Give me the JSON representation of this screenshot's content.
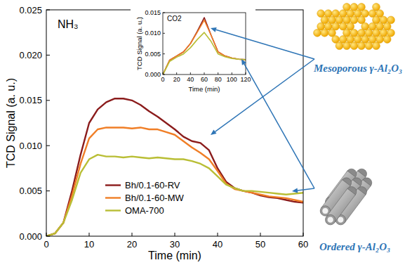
{
  "chart_data": [
    {
      "type": "line",
      "title": "NH₃",
      "x_label": "Time (min)",
      "y_label": "TCD Signal (a. u.)",
      "x": [
        0,
        2,
        4,
        6,
        8,
        10,
        12,
        14,
        16,
        18,
        20,
        22,
        24,
        26,
        28,
        30,
        32,
        34,
        36,
        38,
        40,
        42,
        44,
        46,
        48,
        50,
        52,
        54,
        56,
        58,
        60
      ],
      "series": [
        {
          "name": "Bh/0.1-60-RV",
          "color": "#8b1c1c",
          "values": [
            0,
            0.0003,
            0.0015,
            0.005,
            0.009,
            0.0125,
            0.014,
            0.0148,
            0.0152,
            0.0152,
            0.015,
            0.0145,
            0.0138,
            0.0132,
            0.0125,
            0.0118,
            0.011,
            0.0105,
            0.0103,
            0.0095,
            0.0075,
            0.006,
            0.0053,
            0.005,
            0.0048,
            0.0045,
            0.0043,
            0.0042,
            0.004,
            0.0038,
            0.0037
          ]
        },
        {
          "name": "Bh/0.1-60-MW",
          "color": "#f07e26",
          "values": [
            0,
            0.0003,
            0.0015,
            0.0045,
            0.008,
            0.0108,
            0.0118,
            0.012,
            0.012,
            0.012,
            0.0119,
            0.012,
            0.0118,
            0.0118,
            0.0115,
            0.0112,
            0.0105,
            0.0098,
            0.0092,
            0.0085,
            0.0072,
            0.0058,
            0.0052,
            0.005,
            0.0048,
            0.0046,
            0.0044,
            0.0043,
            0.0042,
            0.004,
            0.0038
          ]
        },
        {
          "name": "OMA-700",
          "color": "#b9be35",
          "values": [
            0,
            0.0003,
            0.0015,
            0.004,
            0.007,
            0.0085,
            0.009,
            0.0088,
            0.0088,
            0.0087,
            0.0088,
            0.0087,
            0.0086,
            0.0087,
            0.0086,
            0.0085,
            0.0085,
            0.0083,
            0.008,
            0.0075,
            0.0066,
            0.0057,
            0.0053,
            0.005,
            0.005,
            0.0049,
            0.0048,
            0.0047,
            0.0046,
            0.0047,
            0.0048
          ]
        }
      ],
      "xlim": [
        0,
        60
      ],
      "xticks": [
        0,
        10,
        20,
        30,
        40,
        50,
        60
      ],
      "ylim": [
        0,
        0.025
      ],
      "yticks": [
        {
          "value": 0,
          "label": "0.000"
        },
        {
          "value": 0.005,
          "label": "0.005"
        },
        {
          "value": 0.01,
          "label": "0.010"
        },
        {
          "value": 0.015,
          "label": "0.015"
        },
        {
          "value": 0.02,
          "label": "0.020"
        },
        {
          "value": 0.025,
          "label": "0.025"
        }
      ],
      "grid": false,
      "legend": "lower left",
      "annotations": [
        "Mesoporous γ-Al₂O₃",
        "Ordered γ-Al₂O₃"
      ]
    },
    {
      "type": "line",
      "title": "CO2",
      "x_label": "Time (min)",
      "y_label": "TCD Signal (a. u.)",
      "x": [
        0,
        10,
        20,
        30,
        40,
        50,
        60,
        70,
        80,
        90,
        100,
        110,
        120
      ],
      "series": [
        {
          "color": "#8b1c1c",
          "values": [
            0,
            0.0035,
            0.0045,
            0.0055,
            0.0075,
            0.0105,
            0.0138,
            0.0095,
            0.0055,
            0.0045,
            0.004,
            0.0037,
            0.0036
          ]
        },
        {
          "color": "#f07e26",
          "values": [
            0,
            0.0035,
            0.0045,
            0.0055,
            0.0075,
            0.0103,
            0.0132,
            0.0095,
            0.0055,
            0.0045,
            0.004,
            0.0037,
            0.0036
          ]
        },
        {
          "color": "#b9be35",
          "values": [
            0,
            0.0032,
            0.0042,
            0.005,
            0.0065,
            0.0085,
            0.0102,
            0.008,
            0.005,
            0.0043,
            0.0039,
            0.0037,
            0.0036
          ]
        }
      ],
      "xlim": [
        0,
        120
      ],
      "xticks": [
        0,
        20,
        40,
        60,
        80,
        100,
        120
      ],
      "ylim": [
        0,
        0.015
      ],
      "yticks": [
        {
          "value": 0,
          "label": "0.000"
        },
        {
          "value": 0.005,
          "label": "0.005"
        },
        {
          "value": 0.01,
          "label": "0.010"
        },
        {
          "value": 0.015,
          "label": "0.015"
        }
      ],
      "grid": false
    }
  ]
}
